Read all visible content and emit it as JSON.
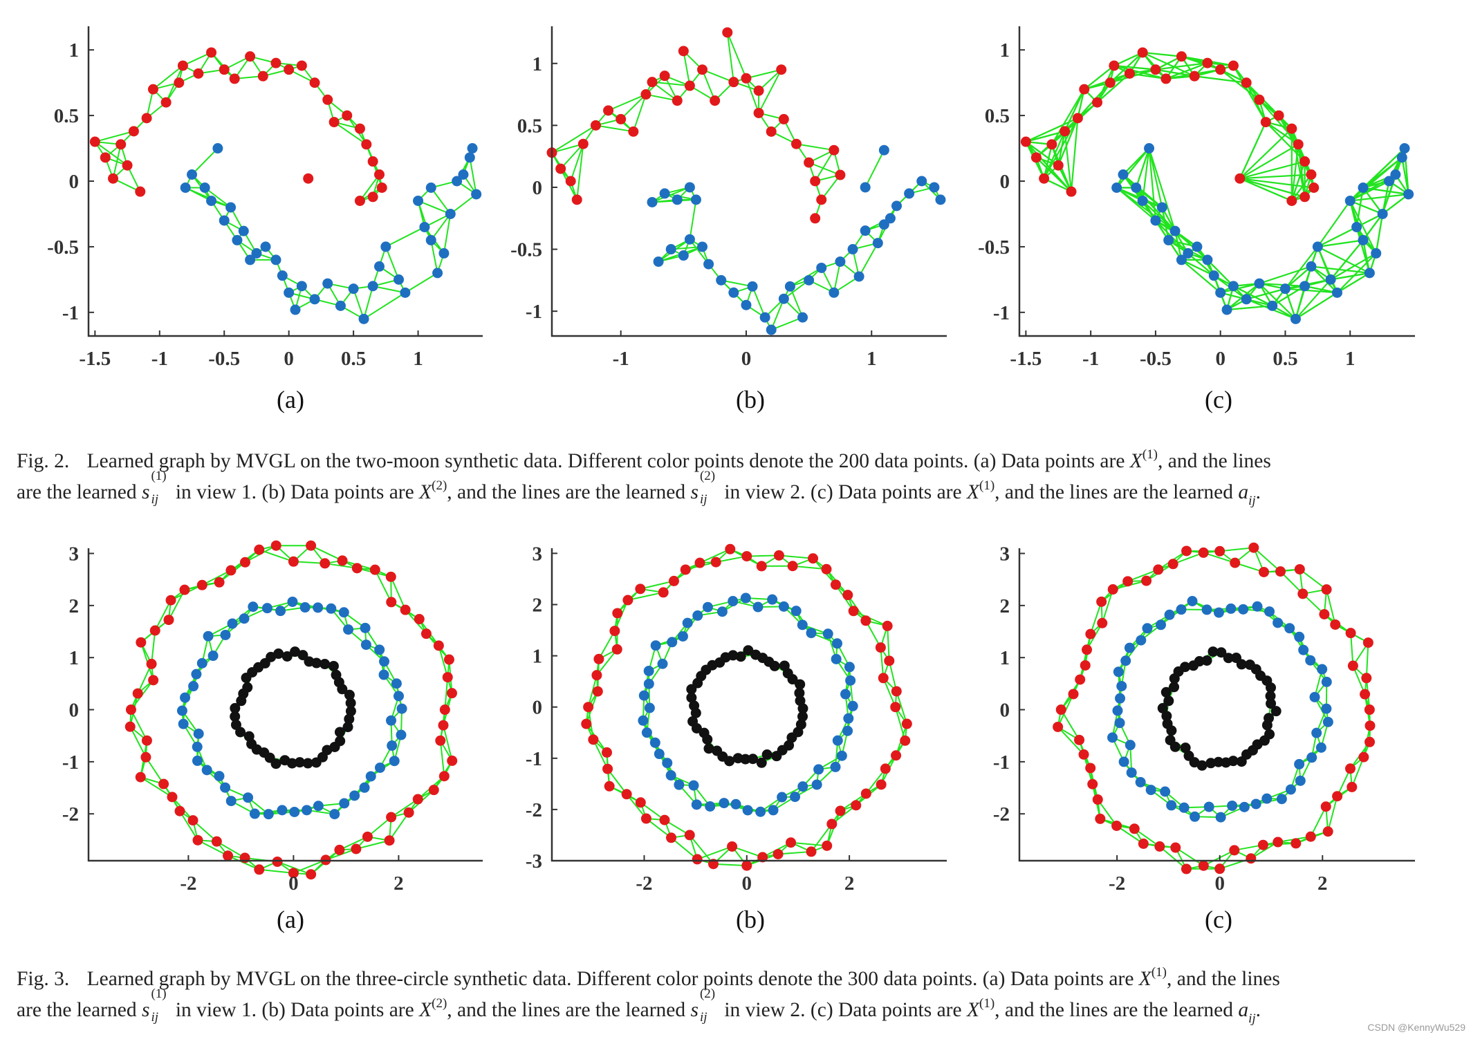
{
  "colors": {
    "red": "#e2191b",
    "blue": "#1f6fc1",
    "black": "#111111",
    "edge": "#22e31f",
    "axis": "#333333"
  },
  "figure2": {
    "caption_prefix": "Fig. 2.",
    "caption_line1_a": "Learned graph by MVGL on the two-moon synthetic data. Different color points denote the 200 data points. (a) Data points are",
    "caption_line1_b": ", and the lines",
    "caption_line2_a": "are the learned",
    "caption_line2_b": "in view 1. (b) Data points are",
    "caption_line2_c": ", and the lines are the learned",
    "caption_line2_d": "in view 2. (c) Data points are",
    "caption_line2_e": ", and the lines are the learned",
    "panel_labels": [
      "(a)",
      "(b)",
      "(c)"
    ]
  },
  "figure3": {
    "caption_prefix": "Fig. 3.",
    "caption_line1_a": "Learned graph by MVGL on the three-circle synthetic data. Different color points denote the 300 data points. (a) Data points are",
    "caption_line1_b": ", and the lines",
    "caption_line2_a": "are the learned",
    "caption_line2_b": "in view 1. (b) Data points are",
    "caption_line2_c": ", and the lines are the learned",
    "caption_line2_d": "in view 2. (c) Data points are",
    "caption_line2_e": ", and the lines are the learned",
    "panel_labels": [
      "(a)",
      "(b)",
      "(c)"
    ]
  },
  "math": {
    "X": "X",
    "one": "(1)",
    "two": "(2)",
    "s": "s",
    "ij": "ij",
    "a": "a",
    "period": "."
  },
  "watermark": "CSDN @KennyWu529",
  "chart_data": [
    {
      "type": "scatter",
      "figure": "Fig. 2",
      "panel": "(a)",
      "xticks": [
        "-1.5",
        "-1",
        "-0.5",
        "0",
        "0.5",
        "1"
      ],
      "yticks": [
        "1",
        "0.5",
        "0",
        "-0.5",
        "-1"
      ],
      "xlim": [
        -1.55,
        1.5
      ],
      "ylim": [
        -1.18,
        1.18
      ],
      "series": [
        {
          "color": "red",
          "points": [
            [
              -1.5,
              0.3
            ],
            [
              -1.42,
              0.18
            ],
            [
              -1.36,
              0.02
            ],
            [
              -1.3,
              0.28
            ],
            [
              -1.25,
              0.12
            ],
            [
              -1.2,
              0.38
            ],
            [
              -1.15,
              -0.08
            ],
            [
              -1.1,
              0.48
            ],
            [
              -1.05,
              0.7
            ],
            [
              -0.95,
              0.6
            ],
            [
              -0.85,
              0.75
            ],
            [
              -0.82,
              0.88
            ],
            [
              -0.7,
              0.82
            ],
            [
              -0.6,
              0.98
            ],
            [
              -0.5,
              0.85
            ],
            [
              -0.42,
              0.78
            ],
            [
              -0.3,
              0.95
            ],
            [
              -0.2,
              0.8
            ],
            [
              -0.1,
              0.9
            ],
            [
              0.0,
              0.85
            ],
            [
              0.1,
              0.88
            ],
            [
              0.2,
              0.75
            ],
            [
              0.3,
              0.62
            ],
            [
              0.35,
              0.45
            ],
            [
              0.45,
              0.5
            ],
            [
              0.55,
              0.4
            ],
            [
              0.6,
              0.28
            ],
            [
              0.65,
              0.15
            ],
            [
              0.7,
              0.05
            ],
            [
              0.72,
              -0.05
            ],
            [
              0.55,
              -0.15
            ],
            [
              0.65,
              -0.12
            ],
            [
              0.15,
              0.02
            ]
          ]
        },
        {
          "color": "blue",
          "points": [
            [
              -0.8,
              -0.05
            ],
            [
              -0.75,
              0.05
            ],
            [
              -0.65,
              -0.05
            ],
            [
              -0.6,
              -0.15
            ],
            [
              -0.55,
              0.25
            ],
            [
              -0.5,
              -0.3
            ],
            [
              -0.45,
              -0.2
            ],
            [
              -0.4,
              -0.45
            ],
            [
              -0.35,
              -0.38
            ],
            [
              -0.3,
              -0.6
            ],
            [
              -0.25,
              -0.55
            ],
            [
              -0.18,
              -0.5
            ],
            [
              -0.1,
              -0.6
            ],
            [
              -0.05,
              -0.72
            ],
            [
              0.0,
              -0.85
            ],
            [
              0.05,
              -0.98
            ],
            [
              0.1,
              -0.8
            ],
            [
              0.2,
              -0.9
            ],
            [
              0.3,
              -0.78
            ],
            [
              0.4,
              -0.95
            ],
            [
              0.5,
              -0.82
            ],
            [
              0.58,
              -1.05
            ],
            [
              0.65,
              -0.8
            ],
            [
              0.7,
              -0.65
            ],
            [
              0.75,
              -0.5
            ],
            [
              0.85,
              -0.75
            ],
            [
              0.9,
              -0.85
            ],
            [
              1.0,
              -0.15
            ],
            [
              1.05,
              -0.35
            ],
            [
              1.1,
              -0.45
            ],
            [
              1.15,
              -0.7
            ],
            [
              1.2,
              -0.55
            ],
            [
              1.25,
              -0.25
            ],
            [
              1.3,
              0.0
            ],
            [
              1.35,
              0.05
            ],
            [
              1.4,
              0.18
            ],
            [
              1.45,
              -0.1
            ],
            [
              1.42,
              0.25
            ],
            [
              1.1,
              -0.05
            ]
          ]
        }
      ]
    },
    {
      "type": "scatter",
      "figure": "Fig. 2",
      "panel": "(b)",
      "xticks": [
        "-1",
        "0",
        "1"
      ],
      "yticks": [
        "1",
        "0.5",
        "0",
        "-0.5",
        "-1"
      ],
      "xlim": [
        -1.55,
        1.6
      ],
      "ylim": [
        -1.2,
        1.3
      ],
      "series": [
        {
          "color": "red",
          "points": [
            [
              -1.55,
              0.28
            ],
            [
              -1.48,
              0.15
            ],
            [
              -1.4,
              0.05
            ],
            [
              -1.35,
              -0.1
            ],
            [
              -1.3,
              0.35
            ],
            [
              -1.2,
              0.5
            ],
            [
              -1.1,
              0.62
            ],
            [
              -1.0,
              0.55
            ],
            [
              -0.9,
              0.45
            ],
            [
              -0.8,
              0.75
            ],
            [
              -0.75,
              0.85
            ],
            [
              -0.65,
              0.9
            ],
            [
              -0.55,
              0.7
            ],
            [
              -0.5,
              1.1
            ],
            [
              -0.45,
              0.82
            ],
            [
              -0.35,
              0.95
            ],
            [
              -0.25,
              0.7
            ],
            [
              -0.15,
              1.25
            ],
            [
              -0.1,
              0.85
            ],
            [
              0.0,
              0.88
            ],
            [
              0.1,
              0.78
            ],
            [
              0.2,
              0.45
            ],
            [
              0.3,
              0.55
            ],
            [
              0.4,
              0.35
            ],
            [
              0.5,
              0.2
            ],
            [
              0.55,
              0.05
            ],
            [
              0.6,
              -0.1
            ],
            [
              0.7,
              0.3
            ],
            [
              0.75,
              0.1
            ],
            [
              0.28,
              0.95
            ],
            [
              0.1,
              0.6
            ],
            [
              0.55,
              -0.25
            ]
          ]
        },
        {
          "color": "blue",
          "points": [
            [
              -0.75,
              -0.12
            ],
            [
              -0.65,
              -0.05
            ],
            [
              -0.55,
              -0.1
            ],
            [
              -0.45,
              0.0
            ],
            [
              -0.4,
              -0.1
            ],
            [
              -0.7,
              -0.6
            ],
            [
              -0.6,
              -0.5
            ],
            [
              -0.5,
              -0.55
            ],
            [
              -0.45,
              -0.42
            ],
            [
              -0.35,
              -0.48
            ],
            [
              -0.3,
              -0.62
            ],
            [
              -0.2,
              -0.75
            ],
            [
              -0.1,
              -0.85
            ],
            [
              0.0,
              -0.95
            ],
            [
              0.05,
              -0.8
            ],
            [
              0.15,
              -1.05
            ],
            [
              0.2,
              -1.15
            ],
            [
              0.3,
              -0.9
            ],
            [
              0.35,
              -0.8
            ],
            [
              0.45,
              -1.05
            ],
            [
              0.5,
              -0.75
            ],
            [
              0.6,
              -0.65
            ],
            [
              0.7,
              -0.85
            ],
            [
              0.75,
              -0.6
            ],
            [
              0.85,
              -0.5
            ],
            [
              0.9,
              -0.72
            ],
            [
              0.95,
              -0.35
            ],
            [
              1.05,
              -0.45
            ],
            [
              1.1,
              -0.3
            ],
            [
              1.15,
              -0.25
            ],
            [
              1.2,
              -0.15
            ],
            [
              1.3,
              -0.05
            ],
            [
              1.4,
              0.05
            ],
            [
              1.5,
              0.0
            ],
            [
              1.55,
              -0.1
            ],
            [
              1.1,
              0.3
            ],
            [
              0.95,
              0.0
            ]
          ]
        }
      ]
    },
    {
      "type": "scatter",
      "figure": "Fig. 2",
      "panel": "(c)",
      "xticks": [
        "-1.5",
        "-1",
        "-0.5",
        "0",
        "0.5",
        "1"
      ],
      "yticks": [
        "1",
        "0.5",
        "0",
        "-0.5",
        "-1"
      ],
      "xlim": [
        -1.55,
        1.5
      ],
      "ylim": [
        -1.18,
        1.18
      ],
      "series": [
        {
          "color": "red",
          "points": [
            [
              -1.5,
              0.3
            ],
            [
              -1.42,
              0.18
            ],
            [
              -1.36,
              0.02
            ],
            [
              -1.3,
              0.28
            ],
            [
              -1.25,
              0.12
            ],
            [
              -1.2,
              0.38
            ],
            [
              -1.15,
              -0.08
            ],
            [
              -1.1,
              0.48
            ],
            [
              -1.05,
              0.7
            ],
            [
              -0.95,
              0.6
            ],
            [
              -0.85,
              0.75
            ],
            [
              -0.82,
              0.88
            ],
            [
              -0.7,
              0.82
            ],
            [
              -0.6,
              0.98
            ],
            [
              -0.5,
              0.85
            ],
            [
              -0.42,
              0.78
            ],
            [
              -0.3,
              0.95
            ],
            [
              -0.2,
              0.8
            ],
            [
              -0.1,
              0.9
            ],
            [
              0.0,
              0.85
            ],
            [
              0.1,
              0.88
            ],
            [
              0.2,
              0.75
            ],
            [
              0.3,
              0.62
            ],
            [
              0.35,
              0.45
            ],
            [
              0.45,
              0.5
            ],
            [
              0.55,
              0.4
            ],
            [
              0.6,
              0.28
            ],
            [
              0.65,
              0.15
            ],
            [
              0.7,
              0.05
            ],
            [
              0.72,
              -0.05
            ],
            [
              0.55,
              -0.15
            ],
            [
              0.65,
              -0.12
            ],
            [
              0.15,
              0.02
            ]
          ]
        },
        {
          "color": "blue",
          "points": [
            [
              -0.8,
              -0.05
            ],
            [
              -0.75,
              0.05
            ],
            [
              -0.65,
              -0.05
            ],
            [
              -0.6,
              -0.15
            ],
            [
              -0.55,
              0.25
            ],
            [
              -0.5,
              -0.3
            ],
            [
              -0.45,
              -0.2
            ],
            [
              -0.4,
              -0.45
            ],
            [
              -0.35,
              -0.38
            ],
            [
              -0.3,
              -0.6
            ],
            [
              -0.25,
              -0.55
            ],
            [
              -0.18,
              -0.5
            ],
            [
              -0.1,
              -0.6
            ],
            [
              -0.05,
              -0.72
            ],
            [
              0.0,
              -0.85
            ],
            [
              0.05,
              -0.98
            ],
            [
              0.1,
              -0.8
            ],
            [
              0.2,
              -0.9
            ],
            [
              0.3,
              -0.78
            ],
            [
              0.4,
              -0.95
            ],
            [
              0.5,
              -0.82
            ],
            [
              0.58,
              -1.05
            ],
            [
              0.65,
              -0.8
            ],
            [
              0.7,
              -0.65
            ],
            [
              0.75,
              -0.5
            ],
            [
              0.85,
              -0.75
            ],
            [
              0.9,
              -0.85
            ],
            [
              1.0,
              -0.15
            ],
            [
              1.05,
              -0.35
            ],
            [
              1.1,
              -0.45
            ],
            [
              1.15,
              -0.7
            ],
            [
              1.2,
              -0.55
            ],
            [
              1.25,
              -0.25
            ],
            [
              1.3,
              0.0
            ],
            [
              1.35,
              0.05
            ],
            [
              1.4,
              0.18
            ],
            [
              1.45,
              -0.1
            ],
            [
              1.42,
              0.25
            ],
            [
              1.1,
              -0.05
            ]
          ]
        }
      ]
    },
    {
      "type": "scatter",
      "figure": "Fig. 3",
      "panel": "(a)",
      "xticks": [
        "-2",
        "0",
        "2"
      ],
      "yticks": [
        "3",
        "2",
        "1",
        "0",
        "-1",
        "-2"
      ],
      "xlim": [
        -3.9,
        3.6
      ],
      "ylim": [
        -2.9,
        3.1
      ],
      "rings": [
        {
          "color": "red",
          "radius": 2.95,
          "count": 60
        },
        {
          "color": "blue",
          "radius": 2.0,
          "count": 52
        },
        {
          "color": "black",
          "radius": 1.05,
          "count": 44
        }
      ]
    },
    {
      "type": "scatter",
      "figure": "Fig. 3",
      "panel": "(b)",
      "xticks": [
        "-2",
        "0",
        "2"
      ],
      "yticks": [
        "3",
        "2",
        "1",
        "0",
        "-1",
        "-2",
        "-3"
      ],
      "xlim": [
        -3.8,
        3.9
      ],
      "ylim": [
        -3.0,
        3.1
      ],
      "rings": [
        {
          "color": "red",
          "radius": 2.95,
          "count": 60
        },
        {
          "color": "blue",
          "radius": 2.0,
          "count": 52
        },
        {
          "color": "black",
          "radius": 1.05,
          "count": 44
        }
      ]
    },
    {
      "type": "scatter",
      "figure": "Fig. 3",
      "panel": "(c)",
      "xticks": [
        "-2",
        "0",
        "2"
      ],
      "yticks": [
        "3",
        "2",
        "1",
        "0",
        "-1",
        "-2"
      ],
      "xlim": [
        -3.9,
        3.8
      ],
      "ylim": [
        -2.9,
        3.1
      ],
      "rings": [
        {
          "color": "red",
          "radius": 2.95,
          "count": 60
        },
        {
          "color": "blue",
          "radius": 2.0,
          "count": 52
        },
        {
          "color": "black",
          "radius": 1.05,
          "count": 44
        }
      ]
    }
  ]
}
